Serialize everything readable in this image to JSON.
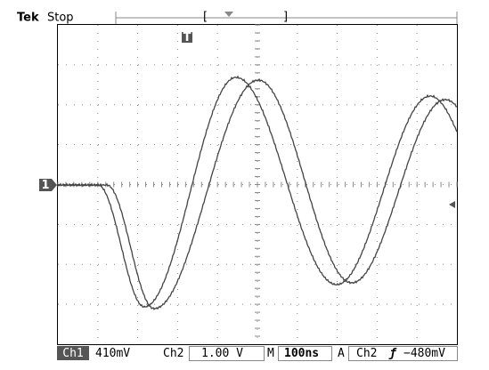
{
  "header": {
    "brand": "Tek",
    "status": "Stop",
    "bracket_left": "[",
    "bracket_right": "]"
  },
  "markers": {
    "trigger": "T",
    "channel": "1"
  },
  "status_bar": {
    "ch1_label": "Ch1",
    "ch1_scale": "410mV",
    "ch2_label": "Ch2",
    "ch2_scale": "1.00 V",
    "time_label": "M",
    "time_scale": "100ns",
    "trigger_mode": "A",
    "trigger_source": "Ch2",
    "trigger_slope": "ƒ",
    "trigger_level": "−480mV"
  }
}
